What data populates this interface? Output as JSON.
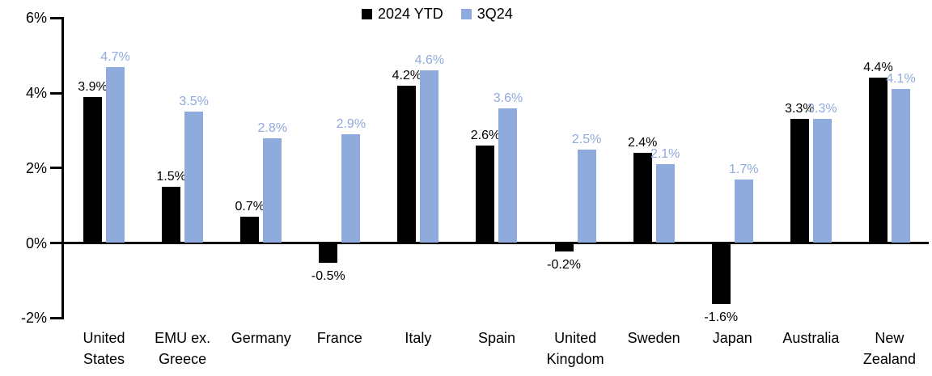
{
  "chart_data": {
    "type": "bar",
    "title": "",
    "categories": [
      "United States",
      "EMU ex. Greece",
      "Germany",
      "France",
      "Italy",
      "Spain",
      "United Kingdom",
      "Sweden",
      "Japan",
      "Australia",
      "New Zealand"
    ],
    "series": [
      {
        "name": "2024 YTD",
        "color": "#000000",
        "values": [
          3.9,
          1.5,
          0.7,
          -0.5,
          4.2,
          2.6,
          -0.2,
          2.4,
          -1.6,
          3.3,
          4.4
        ],
        "labels": [
          "3.9%",
          "1.5%",
          "0.7%",
          "-0.5%",
          "4.2%",
          "2.6%",
          "-0.2%",
          "2.4%",
          "-1.6%",
          "3.3%",
          "4.4%"
        ]
      },
      {
        "name": "3Q24",
        "color": "#8FAADC",
        "values": [
          4.7,
          3.5,
          2.8,
          2.9,
          4.6,
          3.6,
          2.5,
          2.1,
          1.7,
          3.3,
          4.1
        ],
        "labels": [
          "4.7%",
          "3.5%",
          "2.8%",
          "2.9%",
          "4.6%",
          "3.6%",
          "2.5%",
          "2.1%",
          "1.7%",
          "3.3%",
          "4.1%"
        ]
      }
    ],
    "y_axis": {
      "tick_labels": [
        "6%",
        "4%",
        "2%",
        "0%",
        "-2%"
      ],
      "tick_values": [
        6,
        4,
        2,
        0,
        -2
      ],
      "min": -2,
      "max": 6
    },
    "legend_position": "top-center",
    "grid": false,
    "axis_color": "#000000",
    "background_color": "#FFFFFF"
  }
}
